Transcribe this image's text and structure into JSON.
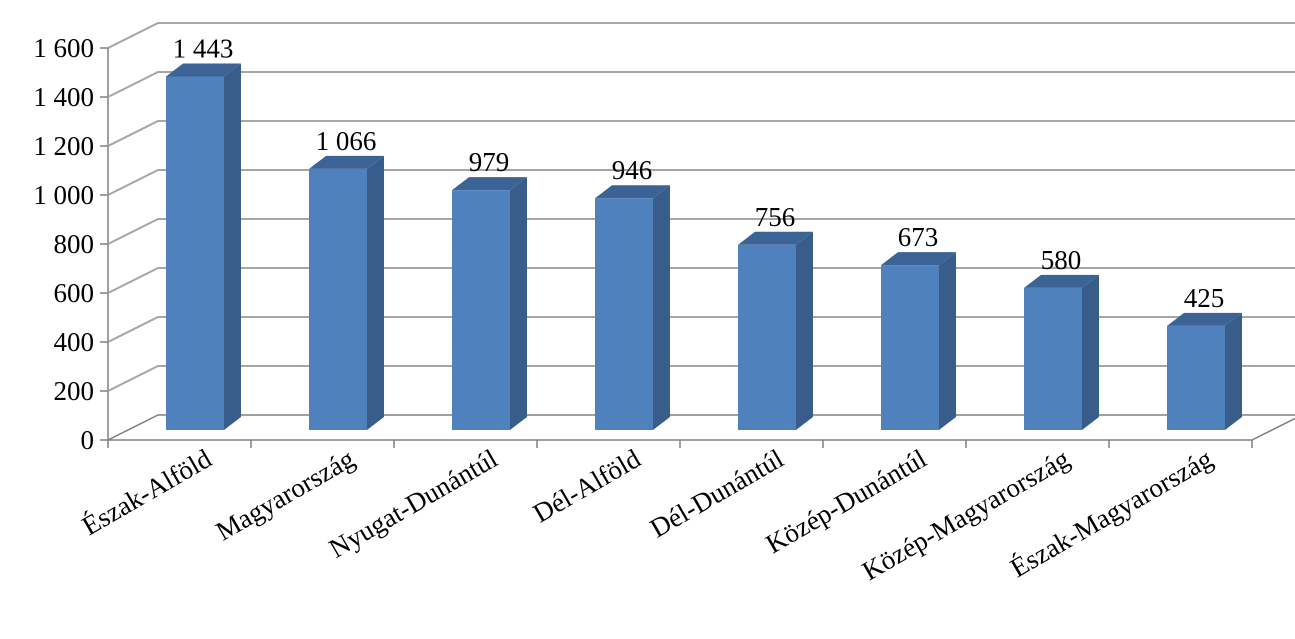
{
  "chart_data": {
    "type": "bar",
    "three_d": true,
    "title": "",
    "xlabel": "",
    "ylabel": "",
    "categories": [
      "Észak-Alföld",
      "Magyarország",
      "Nyugat-Dunántúl",
      "Dél-Alföld",
      "Dél-Dunántúl",
      "Közép-Dunántúl",
      "Közép-Magyarország",
      "Észak-Magyarország"
    ],
    "values": [
      1443,
      1066,
      979,
      946,
      756,
      673,
      580,
      425
    ],
    "value_labels": [
      "1 443",
      "1 066",
      "979",
      "946",
      "756",
      "673",
      "580",
      "425"
    ],
    "ylim": [
      0,
      1600
    ],
    "ytick_values": [
      0,
      200,
      400,
      600,
      800,
      1000,
      1200,
      1400,
      1600
    ],
    "ytick_labels": [
      "0",
      "200",
      "400",
      "600",
      "800",
      "1 000",
      "1 200",
      "1 400",
      "1 600"
    ],
    "grid": true,
    "legend": "none",
    "colors": {
      "bar_front": "#4F81BD",
      "bar_side": "#385D8A",
      "bar_top": "#3C6396",
      "grid": "#A6A6A6",
      "axis": "#808080"
    }
  }
}
